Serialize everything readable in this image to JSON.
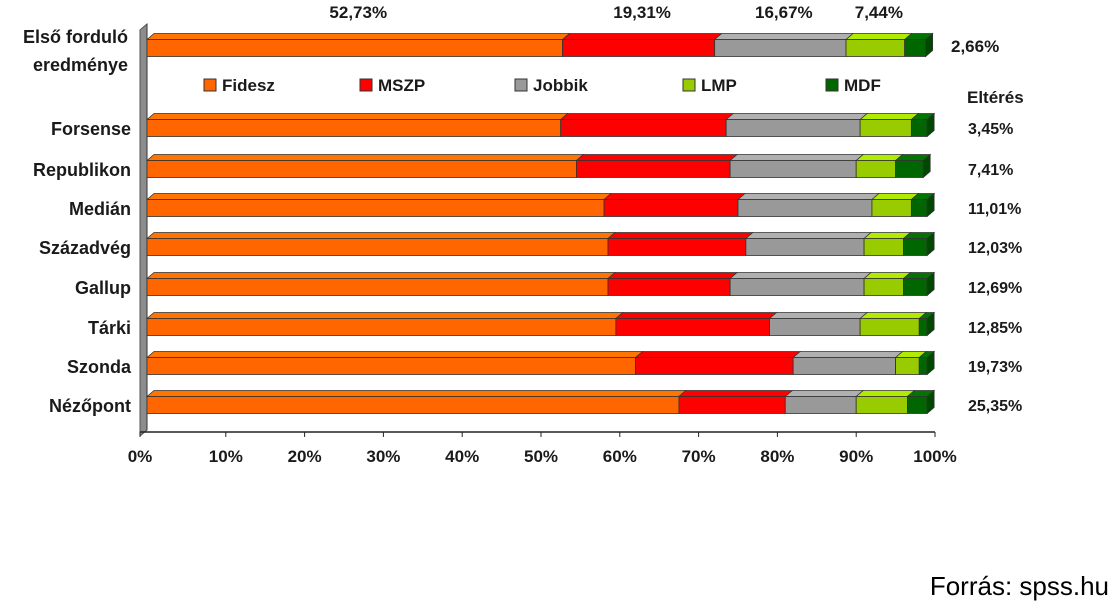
{
  "chart_data": {
    "type": "bar",
    "orientation": "horizontal",
    "stacked": true,
    "normalized": true,
    "categories": [
      "Első forduló eredménye",
      "Forsense",
      "Republikon",
      "Medián",
      "Századvég",
      "Gallup",
      "Tárki",
      "Szonda",
      "Nézőpont"
    ],
    "series": [
      {
        "name": "Fidesz",
        "color": "#ff6600",
        "values": [
          52.73,
          52.5,
          54.5,
          58.0,
          58.5,
          58.5,
          59.5,
          62.0,
          67.5
        ]
      },
      {
        "name": "MSZP",
        "color": "#ff0000",
        "values": [
          19.31,
          21.0,
          19.5,
          17.0,
          17.5,
          15.5,
          19.5,
          20.0,
          13.5
        ]
      },
      {
        "name": "Jobbik",
        "color": "#999999",
        "values": [
          16.67,
          17.0,
          16.0,
          17.0,
          15.0,
          17.0,
          11.5,
          13.0,
          9.0
        ]
      },
      {
        "name": "LMP",
        "color": "#99cc00",
        "values": [
          7.44,
          6.5,
          5.0,
          5.0,
          5.0,
          5.0,
          7.5,
          3.0,
          6.5
        ]
      },
      {
        "name": "MDF",
        "color": "#006600",
        "values": [
          2.66,
          2.0,
          3.5,
          2.0,
          3.0,
          3.0,
          1.0,
          1.0,
          2.5
        ]
      }
    ],
    "top_labels": [
      "52,73%",
      "19,31%",
      "16,67%",
      "7,44%"
    ],
    "mdf_first_label": "2,66%",
    "diff_header": "Eltérés",
    "diff_values": [
      "3,45%",
      "7,41%",
      "11,01%",
      "12,03%",
      "12,69%",
      "12,85%",
      "19,73%",
      "25,35%"
    ],
    "xticks": [
      "0%",
      "10%",
      "20%",
      "30%",
      "40%",
      "50%",
      "60%",
      "70%",
      "80%",
      "90%",
      "100%"
    ],
    "xlim": [
      0,
      100
    ],
    "legend_placement": "inside-top",
    "grid": false
  },
  "first_label_line1": "Első forduló",
  "first_label_line2": "eredménye",
  "source": "Forrás: spss.hu"
}
